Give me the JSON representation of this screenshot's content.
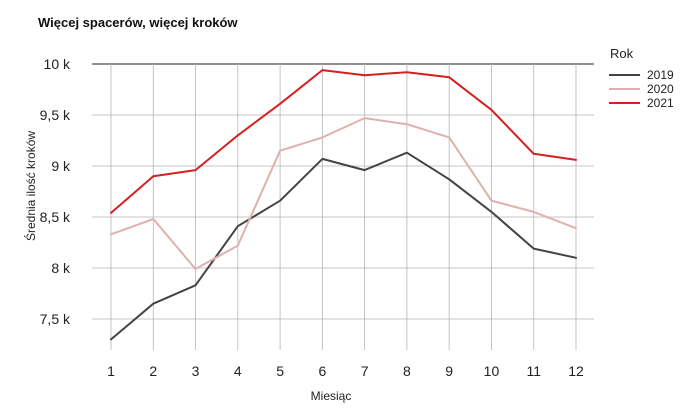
{
  "chart_data": {
    "type": "line",
    "title": "Więcej spacerów, więcej kroków",
    "xlabel": "Miesiąc",
    "ylabel": "Średnia ilość kroków",
    "x": [
      1,
      2,
      3,
      4,
      5,
      6,
      7,
      8,
      9,
      10,
      11,
      12
    ],
    "ylim": [
      7200,
      10000
    ],
    "yticks": [
      7500,
      8000,
      8500,
      9000,
      9500,
      10000
    ],
    "ytick_labels": [
      "7,5 k",
      "8 k",
      "8,5 k",
      "9 k",
      "9,5 k",
      "10 k"
    ],
    "grid": true,
    "legend": {
      "title": "Rok",
      "position": "right"
    },
    "series": [
      {
        "name": "2019",
        "color": "#444444",
        "values": [
          7300,
          7650,
          7830,
          8410,
          8660,
          9070,
          8960,
          9130,
          8870,
          8550,
          8190,
          8100
        ]
      },
      {
        "name": "2020",
        "color": "#e0b0b0",
        "values": [
          8330,
          8480,
          7990,
          8220,
          9150,
          9280,
          9470,
          9410,
          9280,
          8660,
          8550,
          8390
        ]
      },
      {
        "name": "2021",
        "color": "#d42020",
        "values": [
          8540,
          8900,
          8960,
          9300,
          9610,
          9940,
          9890,
          9920,
          9870,
          9550,
          9120,
          9060
        ]
      }
    ]
  }
}
